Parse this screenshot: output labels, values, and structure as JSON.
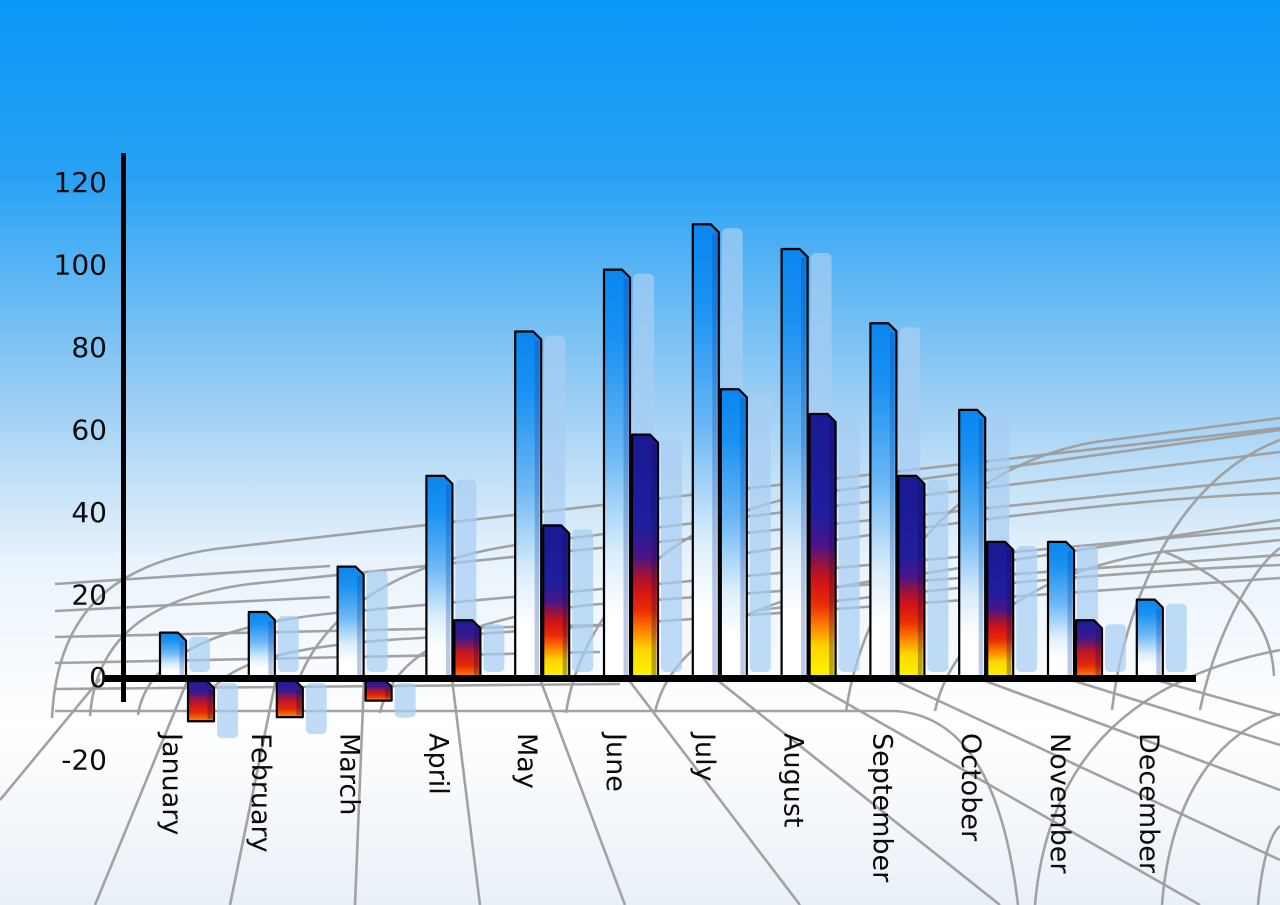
{
  "chart_data": {
    "type": "bar",
    "title": "",
    "subtitle": "",
    "legend": "none",
    "categories": [
      "January",
      "February",
      "March",
      "April",
      "May",
      "June",
      "July",
      "August",
      "September",
      "October",
      "November",
      "December"
    ],
    "series": [
      {
        "name": "series-1-blue-bars",
        "values": [
          11,
          16,
          27,
          49,
          84,
          99,
          110,
          104,
          86,
          65,
          33,
          19
        ]
      },
      {
        "name": "series-2-flame-bars",
        "values": [
          -10,
          -9,
          -5,
          14,
          37,
          59,
          70,
          64,
          49,
          33,
          14,
          null
        ],
        "bar_styles": [
          "flame",
          "flame",
          "flame",
          "flame",
          "flame",
          "flame",
          "blue",
          "flame",
          "flame",
          "flame",
          "flame",
          null
        ]
      }
    ],
    "y_axis": {
      "ticks": [
        120,
        100,
        80,
        60,
        40,
        20,
        0,
        -20
      ],
      "min": -20,
      "max": 120,
      "label": ""
    },
    "x_axis": {
      "label": "",
      "tick_rotation_deg": 90
    },
    "grid": "curved perspective wireframe background",
    "colors": {
      "background_top": "#0997f7",
      "background_mid": "#9fd0f4",
      "background_bottom": "#e9f0f8",
      "bar_blue_top": "#0a86ef",
      "bar_blue_bottom": "#ffffff",
      "flame_navy": "#1c1c9a",
      "flame_red": "#d31414",
      "flame_orange": "#fe7c00",
      "flame_yellow": "#ffee00",
      "bar_outline": "#000000",
      "bar_shadow": "#a8cdf2",
      "axis": "#000000",
      "grid_line": "#9d9d9d",
      "label_text": "#0b0b0b"
    }
  }
}
